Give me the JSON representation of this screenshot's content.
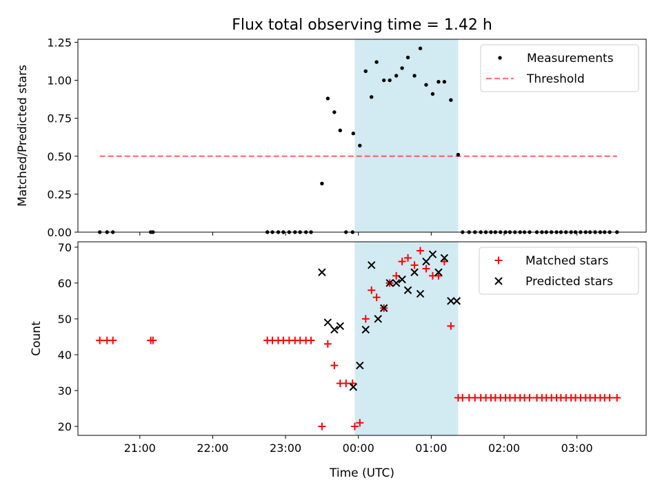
{
  "title": "Flux total observing time = 1.42 h",
  "colors": {
    "shade": "#add8e6",
    "measure": "#000000",
    "threshold": "#ff0000",
    "matched": "#ff0000",
    "predicted": "#000000"
  },
  "chart_data": [
    {
      "type": "scatter",
      "ylabel": "Matched/Predicted stars",
      "xlabel": "",
      "xlim": [
        20.15,
        27.95
      ],
      "ylim": [
        0,
        1.27
      ],
      "yticks": [
        "0.00",
        "0.25",
        "0.50",
        "0.75",
        "1.00",
        "1.25"
      ],
      "shaded_span": [
        23.95,
        25.37
      ],
      "threshold": {
        "value": 0.5,
        "x": [
          20.45,
          27.55
        ]
      },
      "legend": {
        "placement": "upper right",
        "entries": [
          "Measurements",
          "Threshold"
        ]
      },
      "series": [
        {
          "name": "Measurements",
          "marker": "dot",
          "points": [
            [
              20.45,
              0
            ],
            [
              20.55,
              0
            ],
            [
              20.63,
              0
            ],
            [
              21.15,
              0
            ],
            [
              21.18,
              0
            ],
            [
              22.75,
              0
            ],
            [
              22.82,
              0
            ],
            [
              22.9,
              0
            ],
            [
              22.97,
              0
            ],
            [
              23.05,
              0
            ],
            [
              23.13,
              0
            ],
            [
              23.2,
              0
            ],
            [
              23.28,
              0
            ],
            [
              23.35,
              0
            ],
            [
              23.5,
              0.32
            ],
            [
              23.58,
              0.88
            ],
            [
              23.67,
              0.79
            ],
            [
              23.75,
              0.67
            ],
            [
              23.83,
              0
            ],
            [
              23.92,
              0
            ],
            [
              23.93,
              0.65
            ],
            [
              24.02,
              0.57
            ],
            [
              24.1,
              1.06
            ],
            [
              24.18,
              0.89
            ],
            [
              24.25,
              1.12
            ],
            [
              24.35,
              1.0
            ],
            [
              24.43,
              1.0
            ],
            [
              24.52,
              1.03
            ],
            [
              24.6,
              1.08
            ],
            [
              24.68,
              1.15
            ],
            [
              24.77,
              1.03
            ],
            [
              24.85,
              1.21
            ],
            [
              24.93,
              0.97
            ],
            [
              25.02,
              0.91
            ],
            [
              25.1,
              0.99
            ],
            [
              25.18,
              0.99
            ],
            [
              25.27,
              0.87
            ],
            [
              25.37,
              0.51
            ],
            [
              25.43,
              0
            ],
            [
              25.52,
              0
            ],
            [
              25.6,
              0
            ],
            [
              25.68,
              0
            ],
            [
              25.75,
              0
            ],
            [
              25.82,
              0
            ],
            [
              25.88,
              0
            ],
            [
              25.95,
              0
            ],
            [
              26.02,
              0
            ],
            [
              26.08,
              0
            ],
            [
              26.15,
              0
            ],
            [
              26.22,
              0
            ],
            [
              26.28,
              0
            ],
            [
              26.35,
              0
            ],
            [
              26.45,
              0
            ],
            [
              26.52,
              0
            ],
            [
              26.58,
              0
            ],
            [
              26.65,
              0
            ],
            [
              26.72,
              0
            ],
            [
              26.78,
              0
            ],
            [
              26.85,
              0
            ],
            [
              26.92,
              0
            ],
            [
              26.98,
              0
            ],
            [
              27.05,
              0
            ],
            [
              27.12,
              0
            ],
            [
              27.18,
              0
            ],
            [
              27.25,
              0
            ],
            [
              27.32,
              0
            ],
            [
              27.38,
              0
            ],
            [
              27.45,
              0
            ],
            [
              27.55,
              0
            ]
          ]
        }
      ]
    },
    {
      "type": "scatter",
      "ylabel": "Count",
      "xlabel": "Time (UTC)",
      "xlim": [
        20.15,
        27.95
      ],
      "ylim": [
        17.5,
        71.5
      ],
      "yticks": [
        "20",
        "30",
        "40",
        "50",
        "60",
        "70"
      ],
      "xticks": [
        "21:00",
        "22:00",
        "23:00",
        "00:00",
        "01:00",
        "02:00",
        "03:00"
      ],
      "shaded_span": [
        23.95,
        25.37
      ],
      "legend": {
        "placement": "upper right",
        "entries": [
          "Matched stars",
          "Predicted stars"
        ]
      },
      "series": [
        {
          "name": "Matched stars",
          "marker": "plus",
          "points": [
            [
              20.45,
              44
            ],
            [
              20.55,
              44
            ],
            [
              20.63,
              44
            ],
            [
              21.15,
              44
            ],
            [
              21.18,
              44
            ],
            [
              22.75,
              44
            ],
            [
              22.82,
              44
            ],
            [
              22.9,
              44
            ],
            [
              22.97,
              44
            ],
            [
              23.05,
              44
            ],
            [
              23.13,
              44
            ],
            [
              23.2,
              44
            ],
            [
              23.28,
              44
            ],
            [
              23.35,
              44
            ],
            [
              23.5,
              20
            ],
            [
              23.58,
              43
            ],
            [
              23.67,
              37
            ],
            [
              23.75,
              32
            ],
            [
              23.83,
              32
            ],
            [
              23.92,
              32
            ],
            [
              23.95,
              20
            ],
            [
              24.02,
              21
            ],
            [
              24.1,
              50
            ],
            [
              24.18,
              58
            ],
            [
              24.25,
              56
            ],
            [
              24.35,
              53
            ],
            [
              24.43,
              60
            ],
            [
              24.52,
              62
            ],
            [
              24.6,
              66
            ],
            [
              24.68,
              67
            ],
            [
              24.77,
              65
            ],
            [
              24.85,
              69
            ],
            [
              24.93,
              64
            ],
            [
              25.02,
              62
            ],
            [
              25.1,
              62
            ],
            [
              25.18,
              66
            ],
            [
              25.27,
              48
            ],
            [
              25.37,
              28
            ],
            [
              25.43,
              28
            ],
            [
              25.52,
              28
            ],
            [
              25.6,
              28
            ],
            [
              25.68,
              28
            ],
            [
              25.75,
              28
            ],
            [
              25.82,
              28
            ],
            [
              25.88,
              28
            ],
            [
              25.95,
              28
            ],
            [
              26.02,
              28
            ],
            [
              26.08,
              28
            ],
            [
              26.15,
              28
            ],
            [
              26.22,
              28
            ],
            [
              26.28,
              28
            ],
            [
              26.35,
              28
            ],
            [
              26.45,
              28
            ],
            [
              26.52,
              28
            ],
            [
              26.58,
              28
            ],
            [
              26.65,
              28
            ],
            [
              26.72,
              28
            ],
            [
              26.78,
              28
            ],
            [
              26.85,
              28
            ],
            [
              26.92,
              28
            ],
            [
              26.98,
              28
            ],
            [
              27.05,
              28
            ],
            [
              27.12,
              28
            ],
            [
              27.18,
              28
            ],
            [
              27.25,
              28
            ],
            [
              27.32,
              28
            ],
            [
              27.38,
              28
            ],
            [
              27.45,
              28
            ],
            [
              27.55,
              28
            ]
          ]
        },
        {
          "name": "Predicted stars",
          "marker": "x",
          "points": [
            [
              23.5,
              63
            ],
            [
              23.58,
              49
            ],
            [
              23.67,
              47
            ],
            [
              23.75,
              48
            ],
            [
              23.93,
              31
            ],
            [
              24.02,
              37
            ],
            [
              24.1,
              47
            ],
            [
              24.18,
              65
            ],
            [
              24.27,
              50
            ],
            [
              24.35,
              53
            ],
            [
              24.43,
              60
            ],
            [
              24.52,
              60
            ],
            [
              24.6,
              61
            ],
            [
              24.68,
              58
            ],
            [
              24.77,
              63
            ],
            [
              24.85,
              57
            ],
            [
              24.93,
              66
            ],
            [
              25.02,
              68
            ],
            [
              25.1,
              63
            ],
            [
              25.18,
              67
            ],
            [
              25.27,
              55
            ],
            [
              25.35,
              55
            ]
          ]
        }
      ]
    }
  ]
}
